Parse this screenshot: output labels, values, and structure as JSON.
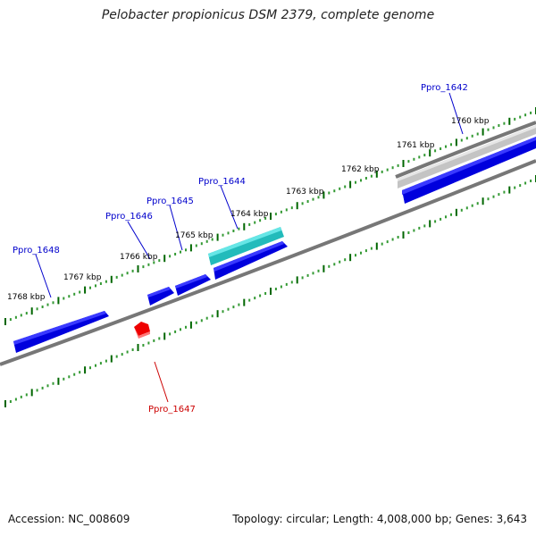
{
  "title": "Pelobacter propionicus DSM 2379, complete genome",
  "footer": {
    "accession": "Accession: NC_008609",
    "summary": "Topology: circular; Length: 4,008,000 bp; Genes: 3,643"
  },
  "scale": {
    "unit": "kbp",
    "ticks": [
      {
        "kbp": 1760,
        "label": "1760 kbp"
      },
      {
        "kbp": 1761,
        "label": "1761 kbp"
      },
      {
        "kbp": 1762,
        "label": "1762 kbp"
      },
      {
        "kbp": 1763,
        "label": "1763 kbp"
      },
      {
        "kbp": 1764,
        "label": "1764 kbp"
      },
      {
        "kbp": 1765,
        "label": "1765 kbp"
      },
      {
        "kbp": 1766,
        "label": "1766 kbp"
      },
      {
        "kbp": 1767,
        "label": "1767 kbp"
      },
      {
        "kbp": 1768,
        "label": "1768 kbp"
      }
    ]
  },
  "genes": [
    {
      "label": "Ppro_1642",
      "color": "#0000cc"
    },
    {
      "label": "Ppro_1644",
      "color": "#0000cc"
    },
    {
      "label": "Ppro_1645",
      "color": "#0000cc"
    },
    {
      "label": "Ppro_1646",
      "color": "#0000cc"
    },
    {
      "label": "Ppro_1647",
      "color": "#cc0000"
    },
    {
      "label": "Ppro_1648",
      "color": "#0000cc"
    }
  ],
  "colors": {
    "gene_forward": "#0000dd",
    "gene_reverse": "#ee0000",
    "feature_cyan": "#22cccc",
    "feature_grey": "#bbbbbb",
    "backbone": "#777777",
    "tick_major": "#006600",
    "tick_minor": "#339933"
  }
}
